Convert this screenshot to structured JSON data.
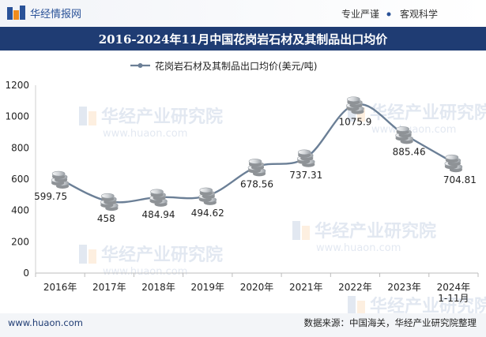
{
  "header": {
    "brand": "华经情报网",
    "tag_left": "专业严谨",
    "tag_right": "客观科学"
  },
  "title": "2016-2024年11月中国花岗岩石材及其制品出口均价",
  "watermark": {
    "cn": "华经产业研究院",
    "url": "www.huaon.com"
  },
  "footer": {
    "website": "www.huaon.com",
    "source": "数据来源：中国海关，华经产业研究院整理"
  },
  "colors": {
    "header_bar": "#1f3c73",
    "brand_blue": "#2a5298",
    "line": "#6b7f96",
    "marker_light": "#e6e8ea",
    "marker_dark": "#8e9296",
    "grid": "#dddddd"
  },
  "chart_data": {
    "type": "line",
    "categories": [
      "2016年",
      "2017年",
      "2018年",
      "2019年",
      "2020年",
      "2021年",
      "2022年",
      "2023年",
      "2024年\n1-11月"
    ],
    "series": [
      {
        "name": "花岗岩石材及其制品出口均价(美元/吨)",
        "values": [
          599.75,
          458,
          484.94,
          494.62,
          678.56,
          737.31,
          1075.9,
          885.46,
          704.81
        ],
        "labels": [
          "599.75",
          "458",
          "484.94",
          "494.62",
          "678.56",
          "737.31",
          "1075.9",
          "885.46",
          "704.81"
        ]
      }
    ],
    "ylim": [
      0,
      1200
    ],
    "yticks": [
      0,
      200,
      400,
      600,
      800,
      1000,
      1200
    ],
    "legend_position": "top-center",
    "marker": "coin-stack",
    "grid": false
  }
}
